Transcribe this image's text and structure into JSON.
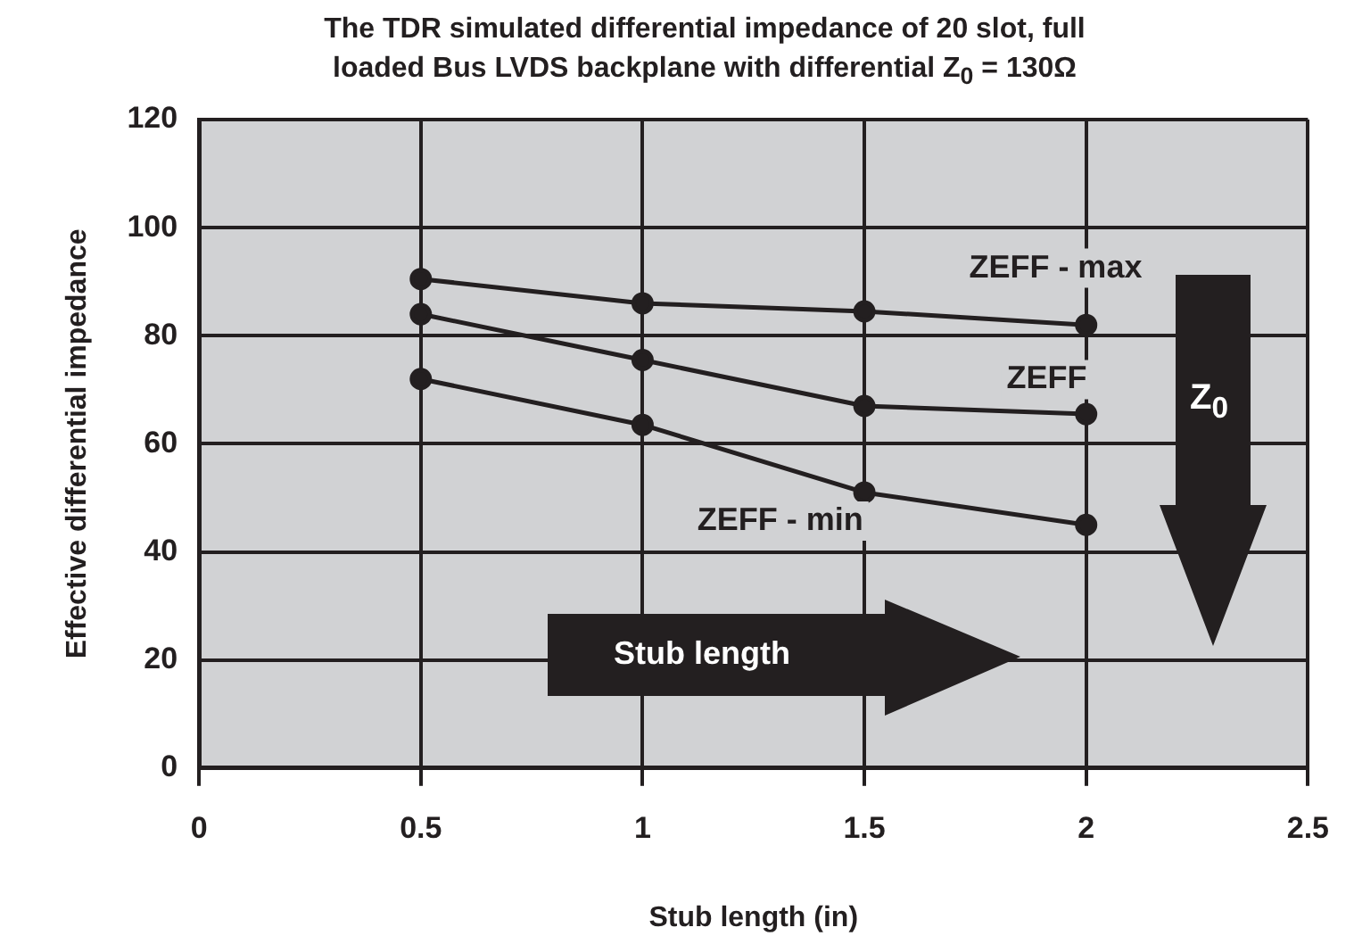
{
  "chart_data": {
    "type": "line",
    "title": "The TDR simulated differential impedance of 20 slot, full loaded Bus LVDS backplane with differential Z$_{0}$ = 130Ω",
    "xlabel": "Stub length (in)",
    "ylabel": "Effective differential impedance",
    "x": [
      0.5,
      1,
      1.5,
      2
    ],
    "series": [
      {
        "name": "ZEFF - max",
        "color": "#231f20",
        "values": [
          90.5,
          86,
          84.5,
          82
        ]
      },
      {
        "name": "ZEFF",
        "color": "#231f20",
        "values": [
          84,
          75.5,
          67,
          65.5
        ]
      },
      {
        "name": "ZEFF - min",
        "color": "#231f20",
        "values": [
          72,
          63.5,
          51,
          45
        ]
      }
    ],
    "annotations": [
      "Stub length",
      "Z$_{0}$"
    ],
    "xlim": [
      0,
      2.5
    ],
    "xticks": [
      0,
      0.5,
      1,
      1.5,
      2,
      2.5
    ],
    "ylim": [
      0,
      120
    ],
    "yticks": [
      0,
      20,
      40,
      60,
      80,
      100,
      120
    ],
    "grid": true,
    "legend": false,
    "marker": "circle",
    "line_style": "solid"
  }
}
